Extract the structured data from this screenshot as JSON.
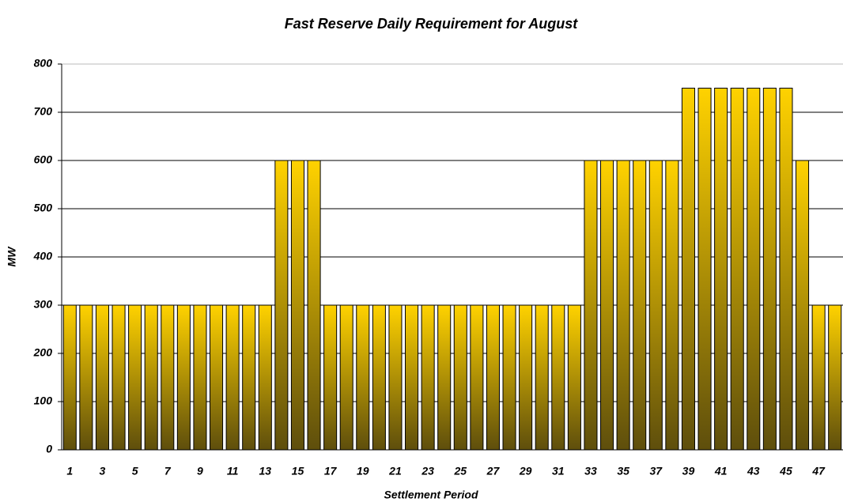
{
  "chart_data": {
    "type": "bar",
    "title": "Fast Reserve Daily Requirement for August",
    "x_label": "Settlement Period",
    "y_label": "MW",
    "categories": [
      "1",
      null,
      "3",
      null,
      "5",
      null,
      "7",
      null,
      "9",
      null,
      "11",
      null,
      "13",
      null,
      "15",
      null,
      "17",
      null,
      "19",
      null,
      "21",
      null,
      "23",
      null,
      "25",
      null,
      "27",
      null,
      "29",
      null,
      "31",
      null,
      "33",
      null,
      "35",
      null,
      "37",
      null,
      "39",
      null,
      "41",
      null,
      "43",
      null,
      "45",
      null,
      "47",
      null
    ],
    "values": [
      300,
      300,
      300,
      300,
      300,
      300,
      300,
      300,
      300,
      300,
      300,
      300,
      300,
      600,
      600,
      600,
      300,
      300,
      300,
      300,
      300,
      300,
      300,
      300,
      300,
      300,
      300,
      300,
      300,
      300,
      300,
      300,
      600,
      600,
      600,
      600,
      600,
      600,
      750,
      750,
      750,
      750,
      750,
      750,
      750,
      600,
      300,
      300
    ],
    "color": "#ffd200",
    "ylim": [
      0,
      800
    ],
    "yticks": [
      0,
      100,
      200,
      300,
      400,
      500,
      600,
      700,
      800
    ],
    "grid": true
  }
}
